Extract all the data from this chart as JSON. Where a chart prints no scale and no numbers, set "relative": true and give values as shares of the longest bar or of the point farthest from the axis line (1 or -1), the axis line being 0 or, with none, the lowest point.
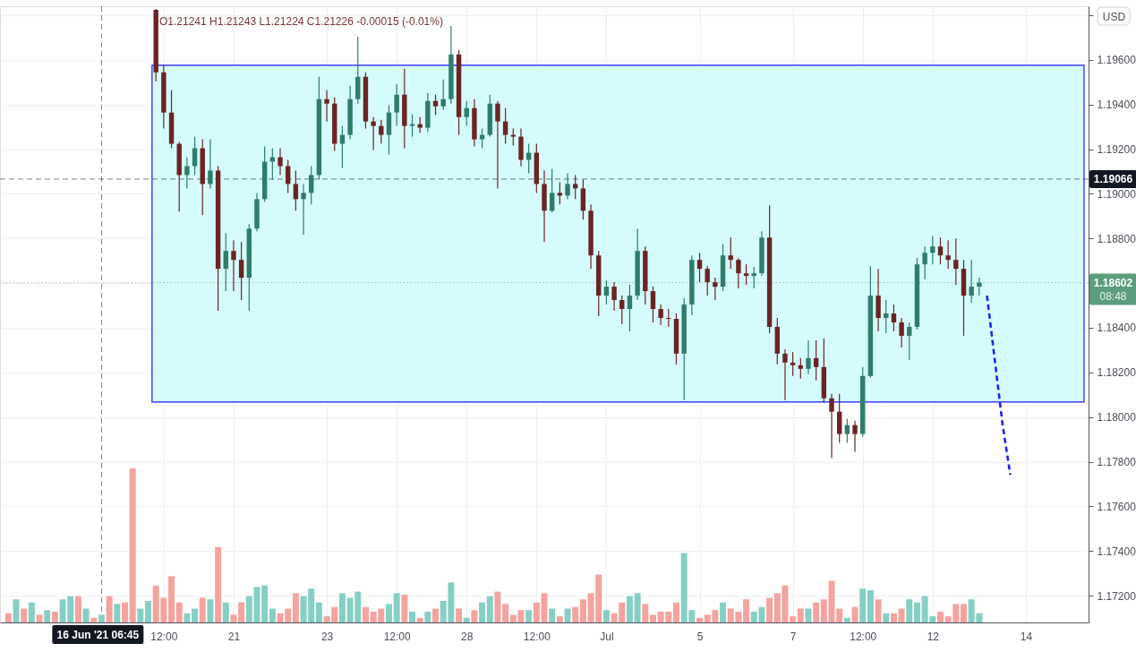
{
  "chart_data": [
    {
      "type": "candlestick",
      "categories": [
        null,
        null,
        null,
        null,
        null,
        null,
        null,
        null,
        null,
        null,
        null,
        null,
        "16 Jun '21 06:45",
        null,
        null,
        null,
        null,
        null,
        null,
        null,
        "12:00",
        null,
        null,
        null,
        null,
        null,
        null,
        null,
        null,
        "21",
        null,
        null,
        null,
        null,
        null,
        null,
        null,
        null,
        null,
        null,
        null,
        "23",
        null,
        null,
        null,
        null,
        null,
        null,
        null,
        null,
        "12:00",
        null,
        null,
        null,
        null,
        null,
        null,
        null,
        null,
        "28",
        null,
        null,
        null,
        null,
        null,
        null,
        null,
        null,
        "12:00",
        null,
        null,
        null,
        null,
        null,
        null,
        null,
        null,
        "Jul",
        null,
        null,
        null,
        null,
        null,
        null,
        null,
        null,
        null,
        null,
        null,
        "5",
        null,
        null,
        null,
        null,
        null,
        null,
        null,
        null,
        null,
        null,
        null,
        "7",
        null,
        null,
        null,
        null,
        null,
        null,
        null,
        null,
        "12:00",
        null,
        null,
        null,
        null,
        null,
        null,
        null,
        null,
        "12",
        null,
        null,
        null,
        null,
        null,
        null,
        null,
        null,
        null,
        null,
        null,
        "14",
        null,
        null,
        null,
        null,
        null,
        null,
        null
      ],
      "ohlc": [
        null,
        null,
        null,
        null,
        null,
        null,
        null,
        null,
        null,
        null,
        null,
        null,
        null,
        null,
        null,
        null,
        null,
        null,
        null,
        [
          1.19824,
          1.19828,
          1.19504,
          1.19544
        ],
        [
          1.19544,
          1.19576,
          1.19292,
          1.19364
        ],
        [
          1.19364,
          1.19464,
          1.19204,
          1.19224
        ],
        [
          1.19224,
          1.19232,
          1.1892,
          1.19084
        ],
        [
          1.19084,
          1.19164,
          1.19024,
          1.19124
        ],
        [
          1.19124,
          1.19256,
          1.19084,
          1.19204
        ],
        [
          1.19204,
          1.19244,
          1.18904,
          1.19044
        ],
        [
          1.19044,
          1.19244,
          1.19024,
          1.19104
        ],
        [
          1.19104,
          1.19124,
          1.18476,
          1.18664
        ],
        [
          1.18664,
          1.18824,
          1.18564,
          1.18744
        ],
        [
          1.18744,
          1.18792,
          1.18564,
          1.18704
        ],
        [
          1.18704,
          1.18784,
          1.18524,
          1.18624
        ],
        [
          1.18624,
          1.18864,
          1.18476,
          1.18844
        ],
        [
          1.18844,
          1.19004,
          1.18832,
          1.18976
        ],
        [
          1.18976,
          1.19212,
          1.18964,
          1.19144
        ],
        [
          1.19144,
          1.19204,
          1.19064,
          1.19164
        ],
        [
          1.19164,
          1.19204,
          1.19084,
          1.19124
        ],
        [
          1.19124,
          1.19152,
          1.19004,
          1.19044
        ],
        [
          1.19044,
          1.19104,
          1.18924,
          1.18976
        ],
        [
          1.18976,
          1.19044,
          1.18816,
          1.19004
        ],
        [
          1.19004,
          1.19124,
          1.18952,
          1.19084
        ],
        [
          1.19084,
          1.19524,
          1.19064,
          1.19424
        ],
        [
          1.19424,
          1.19464,
          1.19324,
          1.19404
        ],
        [
          1.19404,
          1.19432,
          1.19192,
          1.19224
        ],
        [
          1.19224,
          1.19304,
          1.19116,
          1.19264
        ],
        [
          1.19264,
          1.19484,
          1.19244,
          1.19424
        ],
        [
          1.19424,
          1.19704,
          1.19404,
          1.19524
        ],
        [
          1.19524,
          1.19544,
          1.19292,
          1.19324
        ],
        [
          1.19324,
          1.19344,
          1.19196,
          1.19304
        ],
        [
          1.19304,
          1.19332,
          1.19224,
          1.19264
        ],
        [
          1.19264,
          1.19396,
          1.19176,
          1.19364
        ],
        [
          1.19364,
          1.19492,
          1.19304,
          1.19444
        ],
        [
          1.19444,
          1.1956,
          1.19204,
          1.19304
        ],
        [
          1.19304,
          1.19356,
          1.19256,
          1.19312
        ],
        [
          1.19312,
          1.19344,
          1.19272,
          1.19296
        ],
        [
          1.19296,
          1.19452,
          1.19276,
          1.19416
        ],
        [
          1.19416,
          1.19444,
          1.19352,
          1.19392
        ],
        [
          1.19392,
          1.19512,
          1.19376,
          1.19424
        ],
        [
          1.19424,
          1.19752,
          1.19404,
          1.19624
        ],
        [
          1.19624,
          1.19644,
          1.19264,
          1.19344
        ],
        [
          1.19344,
          1.19416,
          1.19304,
          1.19384
        ],
        [
          1.19384,
          1.19424,
          1.19212,
          1.19244
        ],
        [
          1.19244,
          1.19292,
          1.19204,
          1.19264
        ],
        [
          1.19264,
          1.19444,
          1.19256,
          1.19404
        ],
        [
          1.19404,
          1.19416,
          1.19024,
          1.19324
        ],
        [
          1.19324,
          1.19384,
          1.19224,
          1.19264
        ],
        [
          1.19264,
          1.19292,
          1.19216,
          1.19256
        ],
        [
          1.19256,
          1.19292,
          1.19124,
          1.19152
        ],
        [
          1.19152,
          1.19224,
          1.19092,
          1.19184
        ],
        [
          1.19184,
          1.19224,
          1.19004,
          1.19044
        ],
        [
          1.19044,
          1.19104,
          1.18784,
          1.18924
        ],
        [
          1.18924,
          1.19112,
          1.18916,
          1.19004
        ],
        [
          1.19004,
          1.19052,
          1.18952,
          1.18992
        ],
        [
          1.18992,
          1.19092,
          1.18976,
          1.19044
        ],
        [
          1.19044,
          1.19084,
          1.18976,
          1.19024
        ],
        [
          1.19024,
          1.19064,
          1.18884,
          1.18924
        ],
        [
          1.18924,
          1.18952,
          1.18664,
          1.18724
        ],
        [
          1.18724,
          1.18744,
          1.18452,
          1.18544
        ],
        [
          1.18544,
          1.18612,
          1.18504,
          1.18584
        ],
        [
          1.18584,
          1.18604,
          1.18476,
          1.18524
        ],
        [
          1.18524,
          1.18544,
          1.18416,
          1.18484
        ],
        [
          1.18484,
          1.18592,
          1.18384,
          1.18544
        ],
        [
          1.18544,
          1.18844,
          1.18524,
          1.18744
        ],
        [
          1.18744,
          1.18764,
          1.18504,
          1.18564
        ],
        [
          1.18564,
          1.18584,
          1.18424,
          1.18484
        ],
        [
          1.18484,
          1.18504,
          1.18412,
          1.18444
        ],
        [
          1.18444,
          1.18484,
          1.18404,
          1.1844
        ],
        [
          1.1844,
          1.18464,
          1.18236,
          1.18284
        ],
        [
          1.18284,
          1.18532,
          1.18076,
          1.18504
        ],
        [
          1.18504,
          1.18724,
          1.18456,
          1.18704
        ],
        [
          1.18704,
          1.18736,
          1.18604,
          1.18664
        ],
        [
          1.18664,
          1.18676,
          1.18544,
          1.18604
        ],
        [
          1.18604,
          1.18624,
          1.18524,
          1.18584
        ],
        [
          1.18584,
          1.18776,
          1.18564,
          1.18724
        ],
        [
          1.18724,
          1.18804,
          1.18664,
          1.18704
        ],
        [
          1.18704,
          1.18712,
          1.18576,
          1.18644
        ],
        [
          1.18644,
          1.18684,
          1.18592,
          1.18632
        ],
        [
          1.18632,
          1.18672,
          1.18576,
          1.18644
        ],
        [
          1.18644,
          1.18832,
          1.18632,
          1.18804
        ],
        [
          1.18804,
          1.18948,
          1.18376,
          1.18404
        ],
        [
          1.18404,
          1.18444,
          1.18236,
          1.18284
        ],
        [
          1.18284,
          1.18304,
          1.18076,
          1.18244
        ],
        [
          1.18244,
          1.18292,
          1.18184,
          1.18232
        ],
        [
          1.18232,
          1.18264,
          1.18172,
          1.18216
        ],
        [
          1.18216,
          1.18344,
          1.18192,
          1.18264
        ],
        [
          1.18264,
          1.18344,
          1.18164,
          1.18224
        ],
        [
          1.18224,
          1.18352,
          1.18064,
          1.18084
        ],
        [
          1.18084,
          1.18104,
          1.17816,
          1.18024
        ],
        [
          1.18024,
          1.18104,
          1.17884,
          1.17924
        ],
        [
          1.17924,
          1.17992,
          1.17884,
          1.17964
        ],
        [
          1.17964,
          1.17984,
          1.17844,
          1.17924
        ],
        [
          1.17924,
          1.18224,
          1.17912,
          1.18184
        ],
        [
          1.18184,
          1.18676,
          1.18176,
          1.18544
        ],
        [
          1.18544,
          1.18664,
          1.18384,
          1.18444
        ],
        [
          1.18444,
          1.18524,
          1.18376,
          1.18464
        ],
        [
          1.18464,
          1.18504,
          1.18384,
          1.18424
        ],
        [
          1.18424,
          1.18444,
          1.18312,
          1.18364
        ],
        [
          1.18364,
          1.18424,
          1.18256,
          1.18404
        ],
        [
          1.18404,
          1.18712,
          1.18392,
          1.18684
        ],
        [
          1.18684,
          1.18764,
          1.18616,
          1.18736
        ],
        [
          1.18736,
          1.18812,
          1.18684,
          1.18764
        ],
        [
          1.18764,
          1.18804,
          1.18684,
          1.18724
        ],
        [
          1.18724,
          1.18792,
          1.18664,
          1.18704
        ],
        [
          1.18704,
          1.188,
          1.18592,
          1.18664
        ],
        [
          1.18664,
          1.18704,
          1.18364,
          1.18544
        ],
        [
          1.18544,
          1.18704,
          1.18512,
          1.18584
        ],
        [
          1.18584,
          1.18624,
          1.18544,
          1.18602
        ],
        null,
        null,
        null,
        null,
        null,
        null,
        null,
        null,
        null,
        null,
        null,
        null,
        null
      ],
      "colors": [
        null,
        null,
        null,
        null,
        null,
        null,
        null,
        null,
        null,
        null,
        null,
        null,
        null,
        null,
        null,
        null,
        null,
        null,
        null,
        "#6b2424",
        "#6b2424",
        "#6b2424",
        "#6b2424",
        "#2e7d6b",
        "#2e7d6b",
        "#6b2424",
        "#2e7d6b",
        "#6b2424",
        "#2e7d6b",
        "#6b2424",
        "#6b2424",
        "#2e7d6b",
        "#2e7d6b",
        "#2e7d6b",
        "#2e7d6b",
        "#6b2424",
        "#6b2424",
        "#6b2424",
        "#2e7d6b",
        "#2e7d6b",
        "#2e7d6b",
        "#6b2424",
        "#6b2424",
        "#2e7d6b",
        "#2e7d6b",
        "#2e7d6b",
        "#6b2424",
        "#6b2424",
        "#6b2424",
        "#2e7d6b",
        "#2e7d6b",
        "#6b2424",
        "#2e7d6b",
        "#6b2424",
        "#2e7d6b",
        "#6b2424",
        "#2e7d6b",
        "#2e7d6b",
        "#6b2424",
        "#2e7d6b",
        "#6b2424",
        "#2e7d6b",
        "#2e7d6b",
        "#6b2424",
        "#6b2424",
        "#6b2424",
        "#6b2424",
        "#2e7d6b",
        "#6b2424",
        "#6b2424",
        "#2e7d6b",
        "#6b2424",
        "#2e7d6b",
        "#6b2424",
        "#6b2424",
        "#6b2424",
        "#6b2424",
        "#2e7d6b",
        "#6b2424",
        "#6b2424",
        "#2e7d6b",
        "#2e7d6b",
        "#6b2424",
        "#6b2424",
        "#6b2424",
        "#6b2424",
        "#6b2424",
        "#2e7d6b",
        "#2e7d6b",
        "#6b2424",
        "#6b2424",
        "#6b2424",
        "#2e7d6b",
        "#6b2424",
        "#6b2424",
        "#6b2424",
        "#2e7d6b",
        "#2e7d6b",
        "#6b2424",
        "#6b2424",
        "#6b2424",
        "#6b2424",
        "#6b2424",
        "#2e7d6b",
        "#6b2424",
        "#6b2424",
        "#6b2424",
        "#6b2424",
        "#2e7d6b",
        "#6b2424",
        "#2e7d6b",
        "#2e7d6b",
        "#6b2424",
        "#2e7d6b",
        "#6b2424",
        "#6b2424",
        "#2e7d6b",
        "#2e7d6b",
        "#2e7d6b",
        "#2e7d6b",
        "#6b2424",
        "#6b2424",
        "#6b2424",
        "#6b2424",
        "#2e7d6b",
        "#2e7d6b",
        null,
        null,
        null,
        null,
        null,
        null,
        null,
        null,
        null,
        null,
        null,
        null,
        null
      ],
      "series": [
        {
          "type": "line",
          "color": "#1f1ff2",
          "line_style": "dashed",
          "values": [
            null,
            null,
            null,
            null,
            null,
            null,
            null,
            null,
            null,
            null,
            null,
            null,
            null,
            null,
            null,
            null,
            null,
            null,
            null,
            null,
            null,
            null,
            null,
            null,
            null,
            null,
            null,
            null,
            null,
            null,
            null,
            null,
            null,
            null,
            null,
            null,
            null,
            null,
            null,
            null,
            null,
            null,
            null,
            null,
            null,
            null,
            null,
            null,
            null,
            null,
            null,
            null,
            null,
            null,
            null,
            null,
            null,
            null,
            null,
            null,
            null,
            null,
            null,
            null,
            null,
            null,
            null,
            null,
            null,
            null,
            null,
            null,
            null,
            null,
            null,
            null,
            null,
            null,
            null,
            null,
            null,
            null,
            null,
            null,
            null,
            null,
            null,
            null,
            null,
            null,
            null,
            null,
            null,
            null,
            null,
            null,
            null,
            null,
            null,
            null,
            null,
            null,
            null,
            null,
            null,
            null,
            null,
            null,
            null,
            null,
            null,
            null,
            null,
            null,
            null,
            null,
            null,
            null,
            null,
            null,
            null,
            null,
            null,
            null,
            null,
            null,
            1.18544,
            1.18256,
            1.17968,
            1.17741,
            null,
            null,
            null,
            null,
            null,
            null,
            null,
            null,
            null
          ]
        }
      ],
      "ylabel": "USD",
      "ylim": [
        1.1708,
        1.1984
      ],
      "yticks": [
        {
          "value": 1.172,
          "label": "1.17200"
        },
        {
          "value": 1.174,
          "label": "1.17400"
        },
        {
          "value": 1.176,
          "label": "1.17600"
        },
        {
          "value": 1.178,
          "label": "1.17800"
        },
        {
          "value": 1.18,
          "label": "1.18000"
        },
        {
          "value": 1.182,
          "label": "1.18200"
        },
        {
          "value": 1.184,
          "label": "1.18400"
        },
        {
          "value": 1.186,
          "label": null
        },
        {
          "value": 1.188,
          "label": "1.18800"
        },
        {
          "value": 1.19,
          "label": "1.19000"
        },
        {
          "value": 1.192,
          "label": "1.19200"
        },
        {
          "value": 1.194,
          "label": "1.19400"
        },
        {
          "value": 1.196,
          "label": "1.19600"
        },
        {
          "value": 1.198,
          "label": null
        }
      ],
      "grid": true,
      "bands": [
        {
          "axis": "y",
          "from": 1.18067,
          "to": 1.19576,
          "color": "#d2fbfc"
        }
      ],
      "ref_lines": [
        {
          "axis": "y",
          "value": 1.19066,
          "label": "1.19066",
          "line_style": "dashed",
          "color": "#131722"
        },
        {
          "axis": "y",
          "value": 1.18602,
          "label": "1.18602",
          "line_style": "dotted",
          "color": "#5b9d7c"
        },
        {
          "axis": "x",
          "value": "16 Jun '21 06:45",
          "line_style": "dashed",
          "color": "#131722"
        }
      ],
      "annotations": [
        "O1.21241 H1.21243 L1.21224 C1.21226 -0.00015 (-0.01%)",
        "08:48"
      ]
    },
    {
      "type": "bar",
      "relative": true,
      "tick_labels": false,
      "categories": [
        null,
        null,
        null,
        null,
        null,
        null,
        null,
        null,
        null,
        null,
        null,
        null,
        "16 Jun '21 06:45",
        null,
        null,
        null,
        null,
        null,
        null,
        null,
        "12:00",
        null,
        null,
        null,
        null,
        null,
        null,
        null,
        null,
        "21",
        null,
        null,
        null,
        null,
        null,
        null,
        null,
        null,
        null,
        null,
        null,
        "23",
        null,
        null,
        null,
        null,
        null,
        null,
        null,
        null,
        "12:00",
        null,
        null,
        null,
        null,
        null,
        null,
        null,
        null,
        "28",
        null,
        null,
        null,
        null,
        null,
        null,
        null,
        null,
        "12:00",
        null,
        null,
        null,
        null,
        null,
        null,
        null,
        null,
        "Jul",
        null,
        null,
        null,
        null,
        null,
        null,
        null,
        null,
        null,
        null,
        null,
        "5",
        null,
        null,
        null,
        null,
        null,
        null,
        null,
        null,
        null,
        null,
        null,
        "7",
        null,
        null,
        null,
        null,
        null,
        null,
        null,
        null,
        "12:00",
        null,
        null,
        null,
        null,
        null,
        null,
        null,
        null,
        "12",
        null,
        null,
        null,
        null,
        null,
        null,
        null,
        null,
        null,
        null,
        null,
        "14",
        null,
        null,
        null,
        null,
        null,
        null,
        null
      ],
      "values": [
        0.06,
        0.15,
        0.09,
        0.13,
        0.05,
        0.08,
        0.07,
        0.15,
        0.17,
        0.17,
        0.09,
        0.03,
        0.05,
        0.17,
        0.12,
        0.13,
        1,
        0.09,
        0.14,
        0.24,
        0.16,
        0.3,
        0.13,
        0.06,
        0.09,
        0.16,
        0.15,
        0.49,
        0.13,
        0.05,
        0.13,
        0.17,
        0.23,
        0.24,
        0.09,
        0.06,
        0.09,
        0.19,
        0.17,
        0.22,
        0.13,
        0.04,
        0.1,
        0.19,
        0.16,
        0.2,
        0.1,
        0.07,
        0.09,
        0.12,
        0.19,
        0.18,
        0.07,
        0.03,
        0.07,
        0.09,
        0.14,
        0.26,
        0.09,
        0.03,
        0.08,
        0.13,
        0.17,
        0.2,
        0.12,
        0.05,
        0.08,
        0.08,
        0.13,
        0.19,
        0.09,
        0.04,
        0.09,
        0.1,
        0.15,
        0.19,
        0.31,
        0.08,
        0.06,
        0.13,
        0.17,
        0.19,
        0.12,
        0.05,
        0.07,
        0.07,
        0.13,
        0.45,
        0.08,
        0.03,
        0.05,
        0.08,
        0.13,
        0.09,
        0.07,
        0.15,
        0.07,
        0.1,
        0.16,
        0.19,
        0.24,
        0.04,
        0.09,
        0.09,
        0.13,
        0.15,
        0.27,
        0.09,
        0.03,
        0.1,
        0.22,
        0.21,
        0.15,
        0.06,
        0.06,
        0.09,
        0.15,
        0.13,
        0.17,
        0.04,
        0.07,
        0.04,
        0.12,
        0.12,
        0.15,
        0.06,
        null,
        null,
        null,
        null,
        null,
        null,
        null,
        null,
        null,
        null,
        null,
        null,
        null
      ],
      "colors": [
        "#f4a3a0",
        "#86cfc5",
        "#f4a3a0",
        "#86cfc5",
        "#f4a3a0",
        "#86cfc5",
        "#f4a3a0",
        "#86cfc5",
        "#86cfc5",
        "#f4a3a0",
        "#86cfc5",
        "#f4a3a0",
        "#86cfc5",
        "#f4a3a0",
        "#86cfc5",
        "#f4a3a0",
        "#f4a3a0",
        "#86cfc5",
        "#86cfc5",
        "#f4a3a0",
        "#f4a3a0",
        "#f4a3a0",
        "#f4a3a0",
        "#86cfc5",
        "#86cfc5",
        "#f4a3a0",
        "#86cfc5",
        "#f4a3a0",
        "#86cfc5",
        "#f4a3a0",
        "#f4a3a0",
        "#86cfc5",
        "#86cfc5",
        "#86cfc5",
        "#86cfc5",
        "#f4a3a0",
        "#f4a3a0",
        "#f4a3a0",
        "#86cfc5",
        "#86cfc5",
        "#86cfc5",
        "#f4a3a0",
        "#f4a3a0",
        "#86cfc5",
        "#86cfc5",
        "#86cfc5",
        "#f4a3a0",
        "#f4a3a0",
        "#f4a3a0",
        "#86cfc5",
        "#86cfc5",
        "#f4a3a0",
        "#86cfc5",
        "#f4a3a0",
        "#86cfc5",
        "#f4a3a0",
        "#86cfc5",
        "#86cfc5",
        "#f4a3a0",
        "#86cfc5",
        "#f4a3a0",
        "#86cfc5",
        "#86cfc5",
        "#f4a3a0",
        "#f4a3a0",
        "#f4a3a0",
        "#f4a3a0",
        "#86cfc5",
        "#f4a3a0",
        "#f4a3a0",
        "#86cfc5",
        "#f4a3a0",
        "#86cfc5",
        "#f4a3a0",
        "#f4a3a0",
        "#f4a3a0",
        "#f4a3a0",
        "#86cfc5",
        "#f4a3a0",
        "#f4a3a0",
        "#86cfc5",
        "#86cfc5",
        "#f4a3a0",
        "#f4a3a0",
        "#f4a3a0",
        "#f4a3a0",
        "#f4a3a0",
        "#86cfc5",
        "#86cfc5",
        "#f4a3a0",
        "#f4a3a0",
        "#f4a3a0",
        "#86cfc5",
        "#f4a3a0",
        "#f4a3a0",
        "#f4a3a0",
        "#86cfc5",
        "#86cfc5",
        "#f4a3a0",
        "#f4a3a0",
        "#f4a3a0",
        "#f4a3a0",
        "#f4a3a0",
        "#86cfc5",
        "#f4a3a0",
        "#f4a3a0",
        "#f4a3a0",
        "#f4a3a0",
        "#86cfc5",
        "#f4a3a0",
        "#86cfc5",
        "#86cfc5",
        "#f4a3a0",
        "#86cfc5",
        "#f4a3a0",
        "#f4a3a0",
        "#86cfc5",
        "#86cfc5",
        "#86cfc5",
        "#86cfc5",
        "#f4a3a0",
        "#f4a3a0",
        "#f4a3a0",
        "#f4a3a0",
        "#86cfc5",
        "#86cfc5",
        null,
        null,
        null,
        null,
        null,
        null,
        null,
        null,
        null,
        null,
        null,
        null,
        null
      ]
    }
  ]
}
